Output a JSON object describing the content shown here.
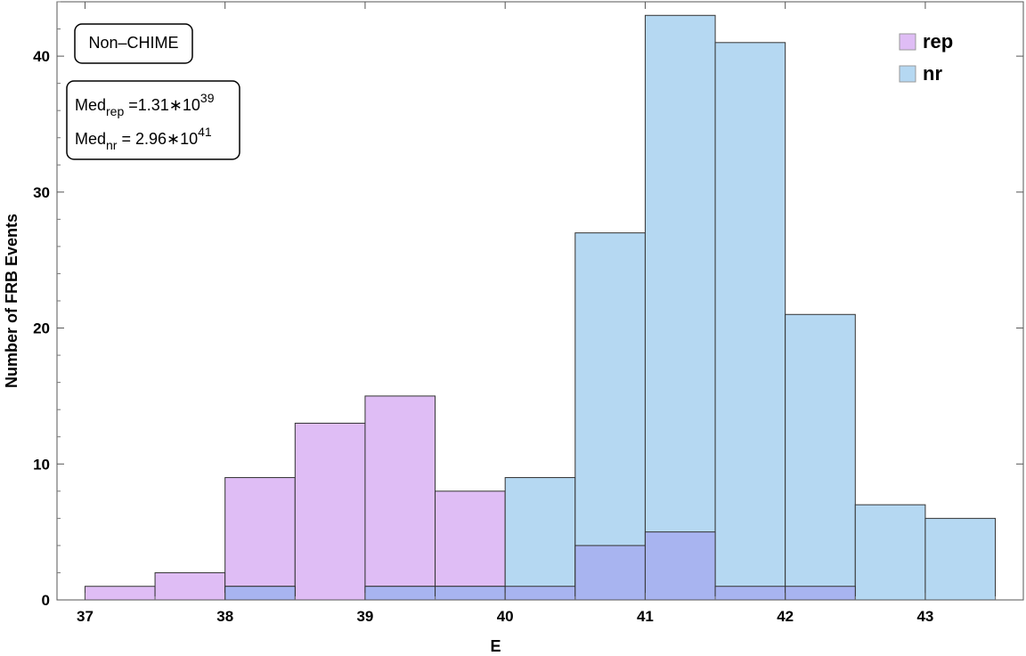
{
  "chart_data": {
    "type": "bar",
    "xlabel": "E",
    "ylabel": "Number of FRB Events",
    "xlim": [
      36.8,
      43.7
    ],
    "ylim": [
      0,
      44
    ],
    "x_ticks": [
      37,
      38,
      39,
      40,
      41,
      42,
      43
    ],
    "y_ticks": [
      0,
      10,
      20,
      30,
      40
    ],
    "grid": false,
    "legend_position": "top-right",
    "series": [
      {
        "name": "rep",
        "color": "#dfbdf5",
        "bins": [
          {
            "x0": 37.0,
            "x1": 37.5,
            "count": 1
          },
          {
            "x0": 37.5,
            "x1": 38.0,
            "count": 2
          },
          {
            "x0": 38.0,
            "x1": 38.5,
            "count": 9
          },
          {
            "x0": 38.5,
            "x1": 39.0,
            "count": 13
          },
          {
            "x0": 39.0,
            "x1": 39.5,
            "count": 15
          },
          {
            "x0": 39.5,
            "x1": 40.0,
            "count": 8
          },
          {
            "x0": 40.0,
            "x1": 40.5,
            "count": 1
          },
          {
            "x0": 40.5,
            "x1": 41.0,
            "count": 4
          },
          {
            "x0": 41.0,
            "x1": 41.5,
            "count": 5
          },
          {
            "x0": 41.5,
            "x1": 42.0,
            "count": 1
          },
          {
            "x0": 42.0,
            "x1": 42.5,
            "count": 1
          }
        ]
      },
      {
        "name": "nr",
        "color": "#b5d8f2",
        "bins": [
          {
            "x0": 38.0,
            "x1": 38.5,
            "count": 1
          },
          {
            "x0": 39.0,
            "x1": 39.5,
            "count": 1
          },
          {
            "x0": 39.5,
            "x1": 40.0,
            "count": 1
          },
          {
            "x0": 40.0,
            "x1": 40.5,
            "count": 9
          },
          {
            "x0": 40.5,
            "x1": 41.0,
            "count": 27
          },
          {
            "x0": 41.0,
            "x1": 41.5,
            "count": 43
          },
          {
            "x0": 41.5,
            "x1": 42.0,
            "count": 41
          },
          {
            "x0": 42.0,
            "x1": 42.5,
            "count": 21
          },
          {
            "x0": 42.5,
            "x1": 43.0,
            "count": 7
          },
          {
            "x0": 43.0,
            "x1": 43.5,
            "count": 6
          }
        ]
      }
    ],
    "overlap_color": "#a8b4f0",
    "annotations": {
      "sample_label": "Non–CHIME",
      "median_rep": {
        "prefix": "Med",
        "sub": "rep",
        "value": " =1.31∗10",
        "exp": "39"
      },
      "median_nr": {
        "prefix": "Med",
        "sub": "nr",
        "value": " = 2.96∗10",
        "exp": "41"
      }
    }
  }
}
